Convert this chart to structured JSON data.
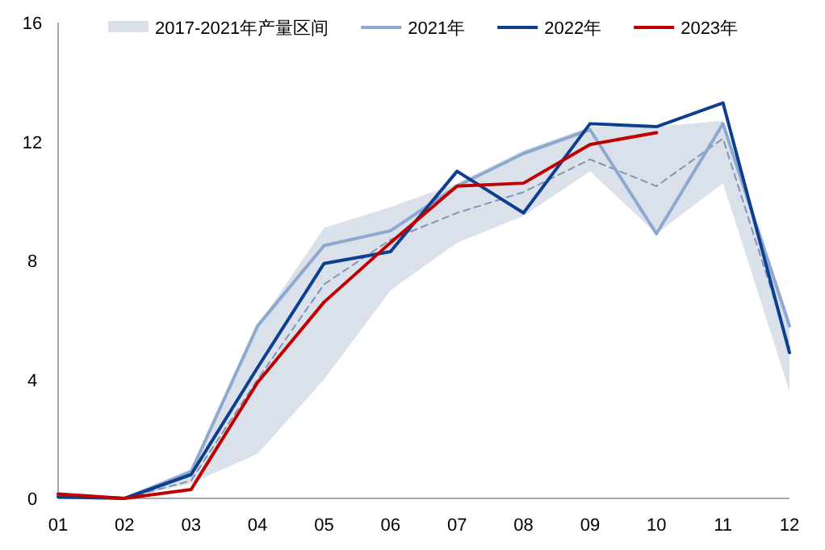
{
  "chart_data": {
    "type": "line",
    "categories": [
      "01",
      "02",
      "03",
      "04",
      "05",
      "06",
      "07",
      "08",
      "09",
      "10",
      "11",
      "12"
    ],
    "ylim": [
      0,
      16
    ],
    "yticks": [
      0,
      4,
      8,
      12,
      16
    ],
    "grid": false,
    "legend": "top",
    "marker": "none",
    "series": [
      {
        "name": "2017-2021年产量区间",
        "line_style": "dashed",
        "color": "#7f95b5",
        "values": [
          0.05,
          0,
          0.6,
          4.0,
          7.2,
          8.7,
          9.6,
          10.3,
          11.4,
          10.5,
          12.1,
          5.1
        ],
        "lower": [
          0,
          0,
          0.5,
          1.5,
          4.0,
          7.0,
          8.6,
          9.5,
          11.0,
          8.9,
          10.6,
          3.6
        ],
        "upper": [
          0.2,
          0,
          1.0,
          5.8,
          9.1,
          9.8,
          10.6,
          11.7,
          12.5,
          12.5,
          12.7,
          6.0
        ]
      },
      {
        "name": "2021年",
        "line_style": "solid",
        "color": "#8ea9d0",
        "values": [
          0.1,
          0,
          0.9,
          5.8,
          8.5,
          9.0,
          10.5,
          11.6,
          12.4,
          8.9,
          12.6,
          5.8
        ]
      },
      {
        "name": "2022年",
        "line_style": "solid",
        "color": "#0d3f8f",
        "values": [
          0.05,
          0,
          0.8,
          4.4,
          7.9,
          8.3,
          11.0,
          9.6,
          12.6,
          12.5,
          13.3,
          4.9
        ]
      },
      {
        "name": "2023年",
        "line_style": "solid",
        "color": "#c00000",
        "values": [
          0.15,
          0,
          0.3,
          3.9,
          6.6,
          8.6,
          10.5,
          10.6,
          11.9,
          12.3,
          null,
          null
        ]
      }
    ]
  }
}
